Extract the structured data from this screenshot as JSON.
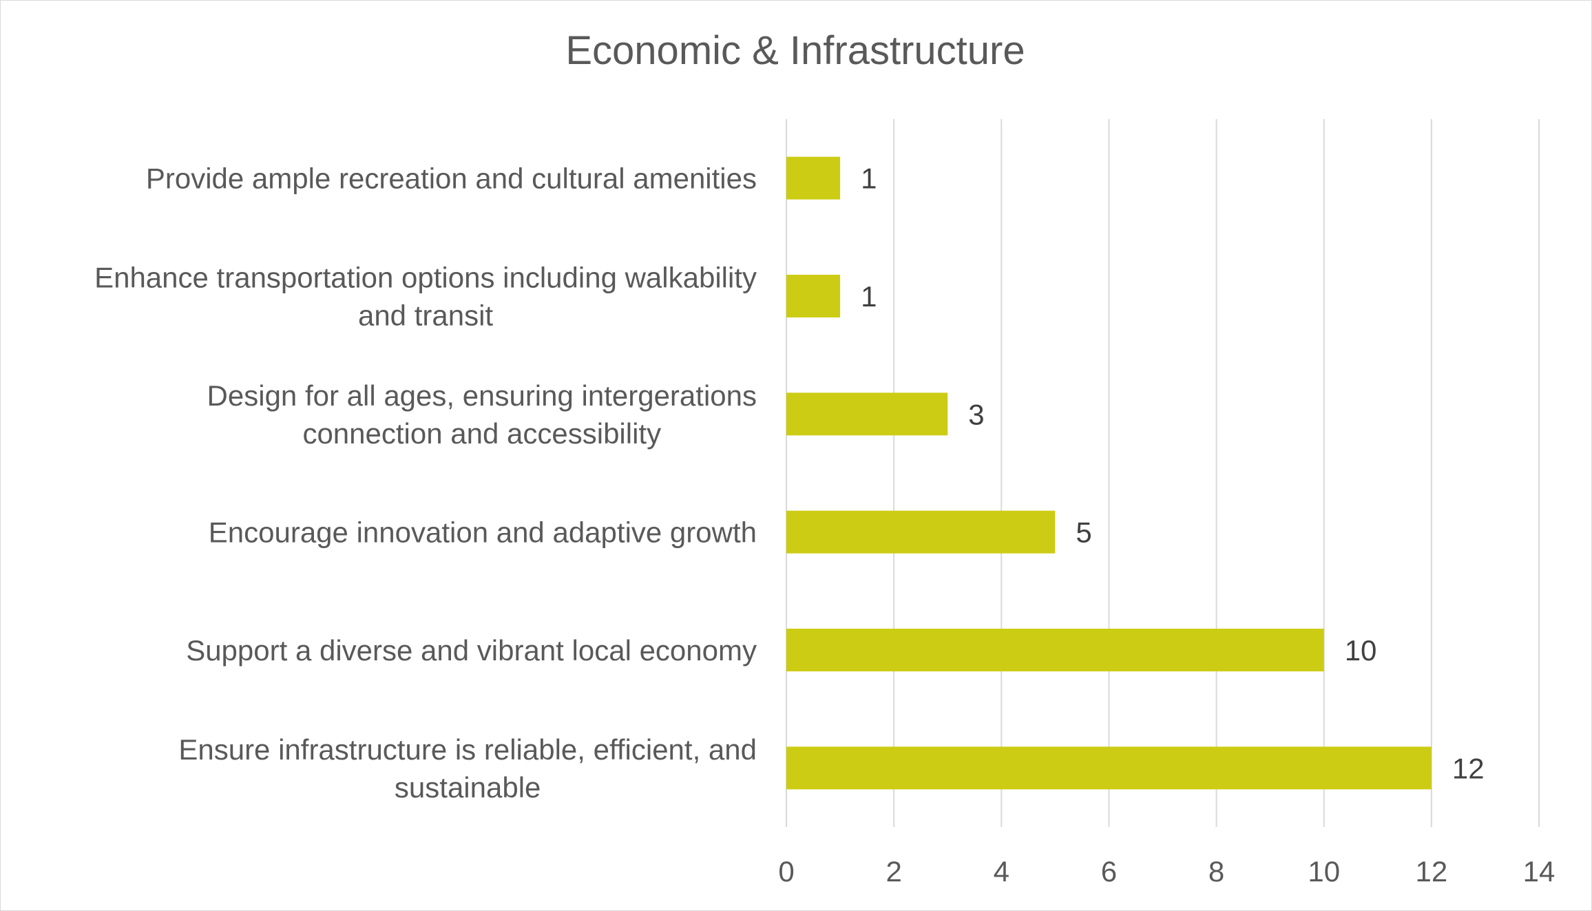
{
  "chart_data": {
    "type": "bar",
    "orientation": "horizontal",
    "title": "Economic & Infrastructure",
    "xlabel": "",
    "ylabel": "",
    "categories": [
      [
        "Provide ample recreation and cultural amenities"
      ],
      [
        "Enhance transportation options including walkability",
        "and transit"
      ],
      [
        "Design for all ages, ensuring intergerations",
        "connection and accessibility"
      ],
      [
        "Encourage innovation and adaptive growth"
      ],
      [
        "Support a diverse and vibrant local economy"
      ],
      [
        "Ensure infrastructure is reliable, efficient, and",
        "sustainable"
      ]
    ],
    "values": [
      1,
      1,
      3,
      5,
      10,
      12
    ],
    "value_labels": [
      "1",
      "1",
      "3",
      "5",
      "10",
      "12"
    ],
    "xlim": [
      0,
      14
    ],
    "xticks": [
      0,
      2,
      4,
      6,
      8,
      10,
      12,
      14
    ],
    "xtick_labels": [
      "0",
      "2",
      "4",
      "6",
      "8",
      "10",
      "12",
      "14"
    ],
    "grid": true,
    "legend": "none",
    "bar_color": "#cccc14"
  }
}
